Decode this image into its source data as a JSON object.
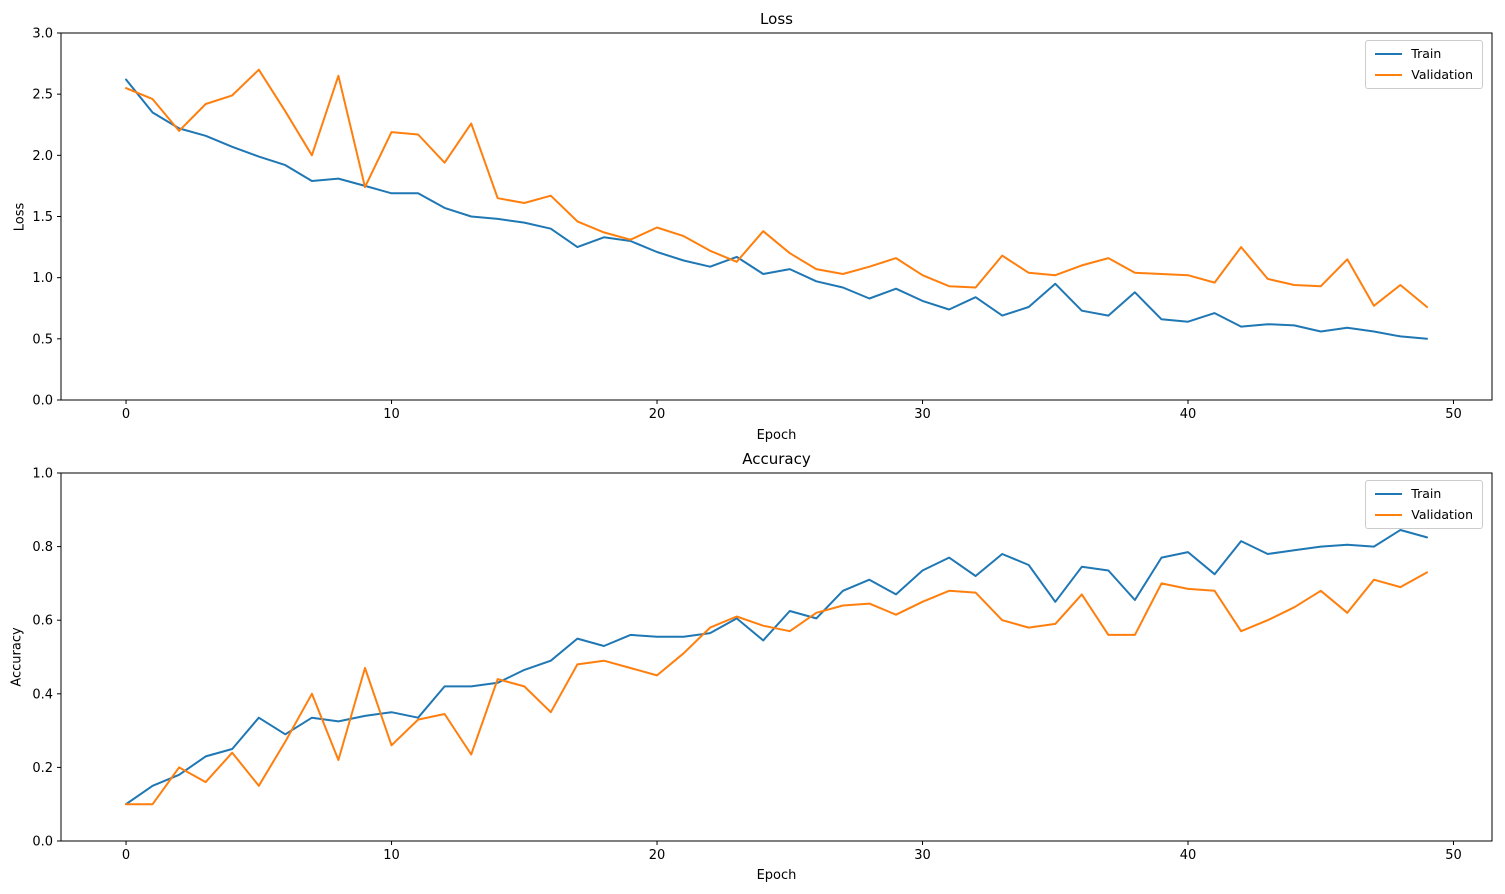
{
  "figure": {
    "background": "#ffffff",
    "accent_train_color": "#1f77b4",
    "accent_validation_color": "#ff7f0e",
    "axis_color": "#000000",
    "legend_border_color": "#cccccc"
  },
  "chart_data": [
    {
      "type": "line",
      "title": "Loss",
      "xlabel": "Epoch",
      "ylabel": "Loss",
      "xlim": [
        -2.45,
        51.45
      ],
      "ylim": [
        0,
        3
      ],
      "grid": false,
      "legend_position": "upper right",
      "legend_entries": [
        "Train",
        "Validation"
      ],
      "xticks": {
        "values": [
          0,
          10,
          20,
          30,
          40,
          50
        ],
        "labels": [
          "0",
          "10",
          "20",
          "30",
          "40",
          "50"
        ]
      },
      "yticks": {
        "values": [
          0,
          0.5,
          1,
          1.5,
          2,
          2.5,
          3
        ],
        "labels": [
          "0.0",
          "0.5",
          "1.0",
          "1.5",
          "2.0",
          "2.5",
          "3.0"
        ]
      },
      "x": [
        0,
        1,
        2,
        3,
        4,
        5,
        6,
        7,
        8,
        9,
        10,
        11,
        12,
        13,
        14,
        15,
        16,
        17,
        18,
        19,
        20,
        21,
        22,
        23,
        24,
        25,
        26,
        27,
        28,
        29,
        30,
        31,
        32,
        33,
        34,
        35,
        36,
        37,
        38,
        39,
        40,
        41,
        42,
        43,
        44,
        45,
        46,
        47,
        48,
        49
      ],
      "series": [
        {
          "name": "Train",
          "color": "#1f77b4",
          "values": [
            2.62,
            2.35,
            2.22,
            2.16,
            2.07,
            1.99,
            1.92,
            1.79,
            1.81,
            1.75,
            1.69,
            1.69,
            1.57,
            1.5,
            1.48,
            1.45,
            1.4,
            1.25,
            1.33,
            1.3,
            1.21,
            1.14,
            1.09,
            1.17,
            1.03,
            1.07,
            0.97,
            0.92,
            0.83,
            0.91,
            0.81,
            0.74,
            0.84,
            0.69,
            0.76,
            0.95,
            0.73,
            0.69,
            0.88,
            0.66,
            0.64,
            0.71,
            0.6,
            0.62,
            0.61,
            0.56,
            0.59,
            0.56,
            0.52,
            0.5
          ]
        },
        {
          "name": "Validation",
          "color": "#ff7f0e",
          "values": [
            2.55,
            2.46,
            2.2,
            2.42,
            2.49,
            2.7,
            2.36,
            2.0,
            2.65,
            1.74,
            2.19,
            2.17,
            1.94,
            2.26,
            1.65,
            1.61,
            1.67,
            1.46,
            1.37,
            1.31,
            1.41,
            1.34,
            1.22,
            1.13,
            1.38,
            1.2,
            1.07,
            1.03,
            1.09,
            1.16,
            1.02,
            0.93,
            0.92,
            1.18,
            1.04,
            1.02,
            1.1,
            1.16,
            1.04,
            1.03,
            1.02,
            0.96,
            1.25,
            0.99,
            0.94,
            0.93,
            1.15,
            0.77,
            0.94,
            0.76
          ]
        }
      ]
    },
    {
      "type": "line",
      "title": "Accuracy",
      "xlabel": "Epoch",
      "ylabel": "Accuracy",
      "xlim": [
        -2.45,
        51.45
      ],
      "ylim": [
        0,
        1
      ],
      "grid": false,
      "legend_position": "upper right",
      "legend_entries": [
        "Train",
        "Validation"
      ],
      "xticks": {
        "values": [
          0,
          10,
          20,
          30,
          40,
          50
        ],
        "labels": [
          "0",
          "10",
          "20",
          "30",
          "40",
          "50"
        ]
      },
      "yticks": {
        "values": [
          0,
          0.2,
          0.4,
          0.6,
          0.8,
          1
        ],
        "labels": [
          "0.0",
          "0.2",
          "0.4",
          "0.6",
          "0.8",
          "1.0"
        ]
      },
      "x": [
        0,
        1,
        2,
        3,
        4,
        5,
        6,
        7,
        8,
        9,
        10,
        11,
        12,
        13,
        14,
        15,
        16,
        17,
        18,
        19,
        20,
        21,
        22,
        23,
        24,
        25,
        26,
        27,
        28,
        29,
        30,
        31,
        32,
        33,
        34,
        35,
        36,
        37,
        38,
        39,
        40,
        41,
        42,
        43,
        44,
        45,
        46,
        47,
        48,
        49
      ],
      "series": [
        {
          "name": "Train",
          "color": "#1f77b4",
          "values": [
            0.1,
            0.15,
            0.18,
            0.23,
            0.25,
            0.335,
            0.29,
            0.335,
            0.325,
            0.34,
            0.35,
            0.335,
            0.42,
            0.42,
            0.43,
            0.465,
            0.49,
            0.55,
            0.53,
            0.56,
            0.555,
            0.555,
            0.565,
            0.605,
            0.545,
            0.625,
            0.605,
            0.68,
            0.71,
            0.67,
            0.735,
            0.77,
            0.72,
            0.78,
            0.75,
            0.65,
            0.745,
            0.735,
            0.655,
            0.77,
            0.785,
            0.725,
            0.815,
            0.78,
            0.79,
            0.8,
            0.805,
            0.8,
            0.845,
            0.825
          ]
        },
        {
          "name": "Validation",
          "color": "#ff7f0e",
          "values": [
            0.1,
            0.1,
            0.2,
            0.16,
            0.24,
            0.15,
            0.27,
            0.4,
            0.22,
            0.47,
            0.26,
            0.33,
            0.345,
            0.235,
            0.44,
            0.42,
            0.35,
            0.48,
            0.49,
            0.47,
            0.45,
            0.51,
            0.58,
            0.61,
            0.585,
            0.57,
            0.62,
            0.64,
            0.645,
            0.615,
            0.65,
            0.68,
            0.675,
            0.6,
            0.58,
            0.59,
            0.67,
            0.56,
            0.56,
            0.7,
            0.685,
            0.68,
            0.57,
            0.6,
            0.635,
            0.68,
            0.62,
            0.71,
            0.69,
            0.73
          ]
        }
      ]
    }
  ]
}
